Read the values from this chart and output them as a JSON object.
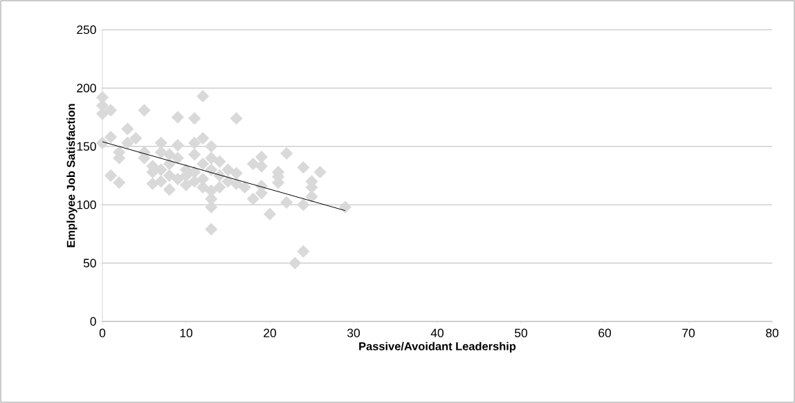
{
  "chart_data": {
    "type": "scatter",
    "xlabel": "Passive/Avoidant Leadership",
    "ylabel": "Employee Job Satisfaction",
    "xlim": [
      0,
      80
    ],
    "xticks": [
      0,
      10,
      20,
      30,
      40,
      50,
      60,
      70,
      80
    ],
    "ylim": [
      0,
      250
    ],
    "yticks": [
      0,
      50,
      100,
      150,
      200,
      250
    ],
    "grid": "y",
    "series": [
      {
        "color": "#d9d9d9",
        "marker": "diamond",
        "x": [
          0,
          0,
          0,
          0,
          1,
          1,
          1,
          2,
          2,
          2,
          3,
          3,
          4,
          5,
          5,
          5,
          6,
          6,
          6,
          7,
          7,
          7,
          7,
          8,
          8,
          8,
          8,
          9,
          9,
          9,
          9,
          10,
          10,
          10,
          11,
          11,
          11,
          11,
          11,
          12,
          12,
          12,
          12,
          12,
          13,
          13,
          13,
          13,
          13,
          13,
          13,
          14,
          14,
          14,
          15,
          15,
          16,
          16,
          16,
          17,
          18,
          18,
          19,
          19,
          19,
          19,
          20,
          21,
          21,
          21,
          22,
          22,
          23,
          24,
          24,
          24,
          25,
          25,
          25,
          26,
          29
        ],
        "values": [
          192,
          185,
          178,
          153,
          181,
          158,
          125,
          145,
          140,
          119,
          165,
          153,
          157,
          181,
          145,
          140,
          133,
          118,
          128,
          153,
          145,
          130,
          120,
          143,
          125,
          113,
          135,
          175,
          151,
          140,
          122,
          130,
          117,
          125,
          174,
          153,
          143,
          128,
          120,
          193,
          157,
          135,
          115,
          122,
          150,
          140,
          130,
          112,
          105,
          98,
          79,
          137,
          125,
          115,
          130,
          120,
          174,
          127,
          118,
          115,
          135,
          105,
          141,
          133,
          116,
          110,
          92,
          128,
          124,
          119,
          144,
          102,
          50,
          132,
          100,
          60,
          120,
          115,
          107,
          128,
          98
        ]
      },
      {
        "type": "line",
        "color": "#000000",
        "x": [
          0,
          29
        ],
        "values": [
          154,
          95
        ]
      }
    ]
  }
}
